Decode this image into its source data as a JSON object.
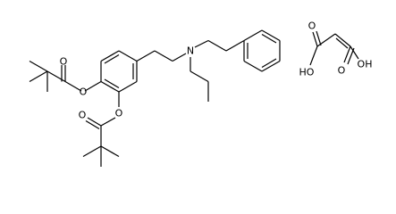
{
  "atoms": [
    {
      "label": "O"
    },
    {
      "label": "O"
    },
    {
      "label": "O"
    },
    {
      "label": "O"
    },
    {
      "label": "N"
    },
    {
      "label": "O"
    },
    {
      "label": "HO"
    },
    {
      "label": "O"
    },
    {
      "label": "OH"
    }
  ]
}
